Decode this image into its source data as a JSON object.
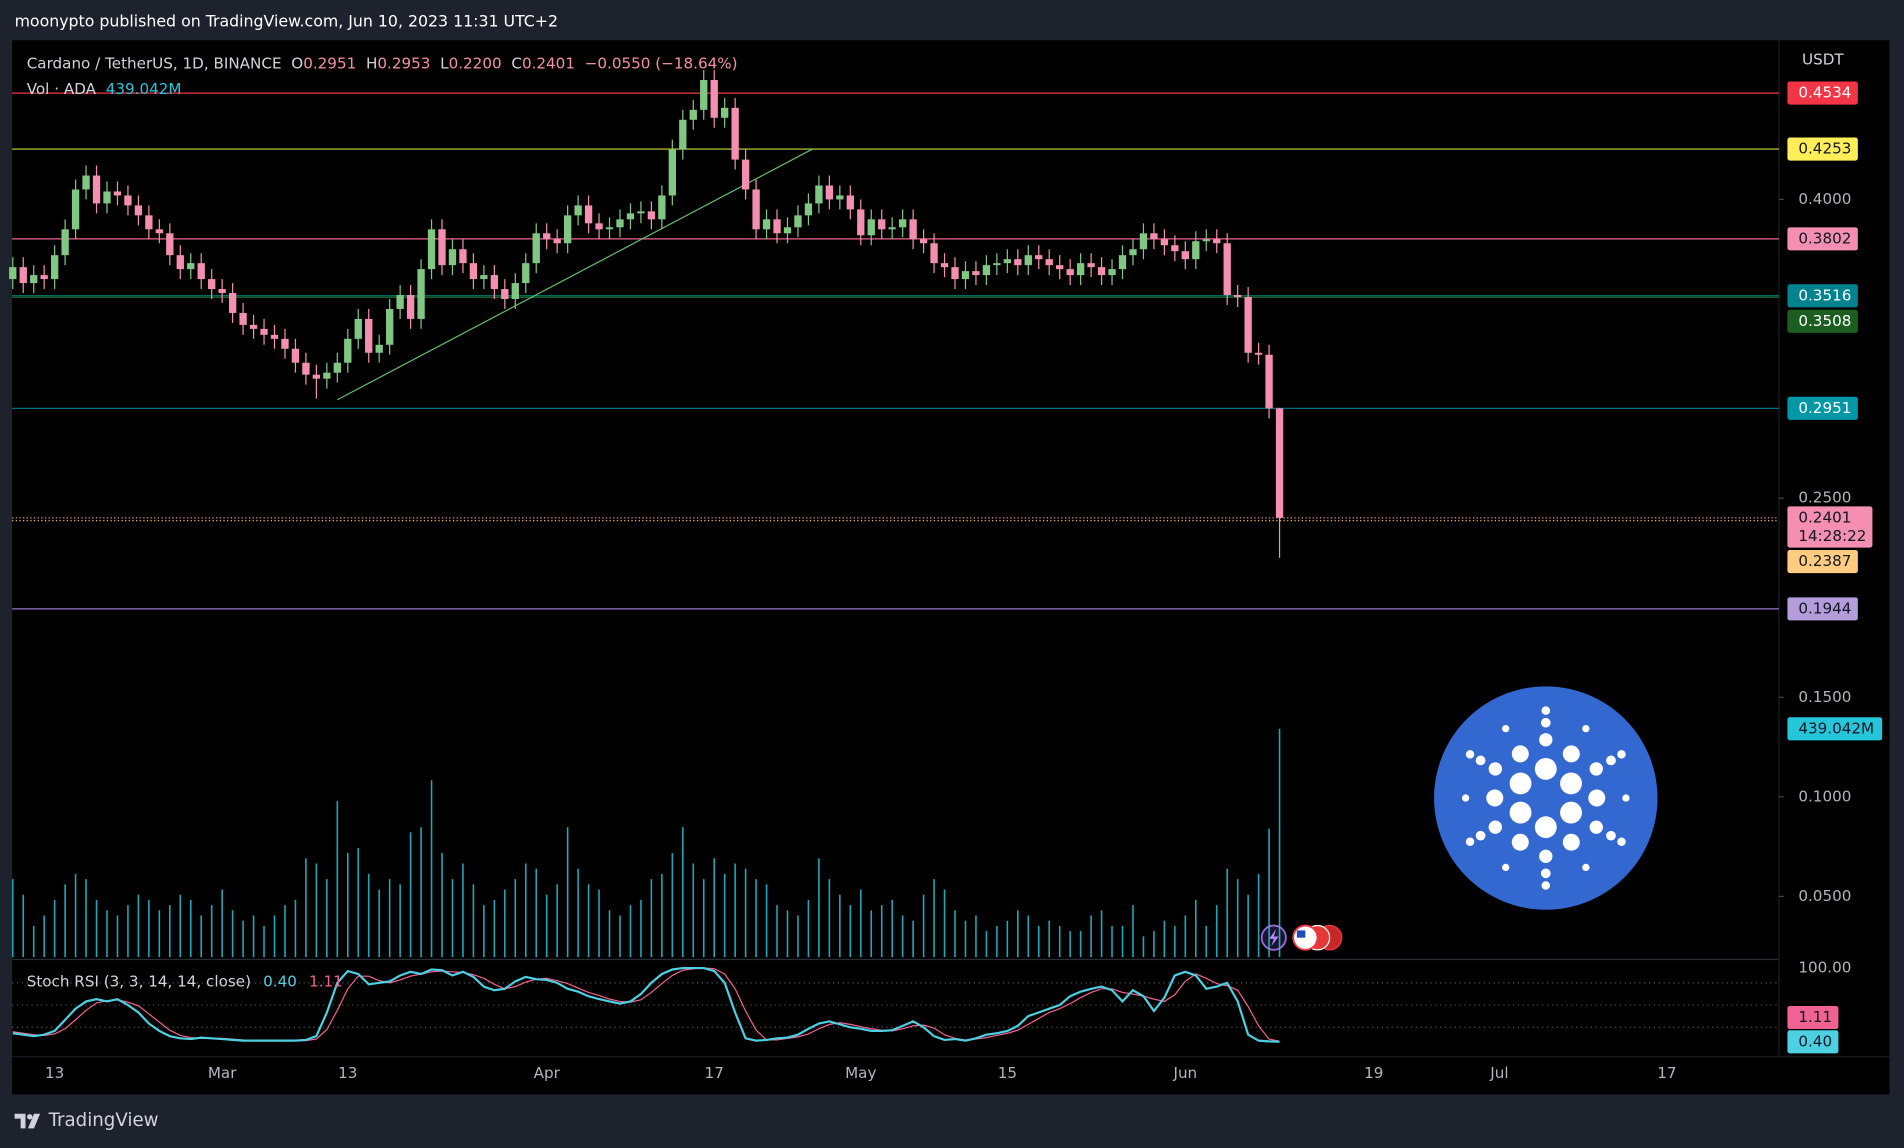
{
  "header": {
    "byline": "moonypto published on TradingView.com, Jun 10, 2023 11:31 UTC+2",
    "footer": "TradingView"
  },
  "chart_data": {
    "type": "candlestick",
    "legend": {
      "symbol": "Cardano / TetherUS, 1D, BINANCE",
      "fields": [
        {
          "key": "O",
          "value": "0.2951"
        },
        {
          "key": "H",
          "value": "0.2953"
        },
        {
          "key": "L",
          "value": "0.2200"
        },
        {
          "key": "C",
          "value": "0.2401"
        }
      ],
      "change": "−0.0550 (−18.64%)"
    },
    "y_axis_label": "USDT",
    "colors": {
      "up": "#81c784",
      "down": "#f48fb1"
    },
    "open": [
      0.36,
      0.366,
      0.358,
      0.362,
      0.36,
      0.372,
      0.385,
      0.405,
      0.412,
      0.398,
      0.404,
      0.402,
      0.397,
      0.392,
      0.385,
      0.383,
      0.372,
      0.365,
      0.368,
      0.36,
      0.355,
      0.353,
      0.343,
      0.337,
      0.335,
      0.332,
      0.33,
      0.325,
      0.318,
      0.312,
      0.31,
      0.313,
      0.318,
      0.33,
      0.34,
      0.323,
      0.327,
      0.345,
      0.352,
      0.34,
      0.365,
      0.385,
      0.367,
      0.375,
      0.368,
      0.36,
      0.362,
      0.355,
      0.35,
      0.358,
      0.368,
      0.383,
      0.38,
      0.378,
      0.392,
      0.397,
      0.388,
      0.385,
      0.386,
      0.39,
      0.393,
      0.394,
      0.39,
      0.402,
      0.425,
      0.44,
      0.445,
      0.46,
      0.441,
      0.446,
      0.42,
      0.405,
      0.385,
      0.39,
      0.383,
      0.386,
      0.392,
      0.398,
      0.407,
      0.4,
      0.402,
      0.395,
      0.382,
      0.39,
      0.385,
      0.386,
      0.39,
      0.38,
      0.378,
      0.368,
      0.366,
      0.36,
      0.364,
      0.362,
      0.367,
      0.368,
      0.37,
      0.367,
      0.372,
      0.37,
      0.367,
      0.365,
      0.362,
      0.368,
      0.366,
      0.362,
      0.365,
      0.372,
      0.375,
      0.383,
      0.38,
      0.377,
      0.374,
      0.37,
      0.379,
      0.38,
      0.378,
      0.352,
      0.351,
      0.323,
      0.322,
      0.2951
    ],
    "high": [
      0.371,
      0.371,
      0.367,
      0.367,
      0.377,
      0.39,
      0.41,
      0.417,
      0.417,
      0.409,
      0.409,
      0.407,
      0.402,
      0.397,
      0.39,
      0.388,
      0.377,
      0.373,
      0.373,
      0.365,
      0.36,
      0.358,
      0.348,
      0.342,
      0.34,
      0.337,
      0.335,
      0.33,
      0.323,
      0.317,
      0.318,
      0.323,
      0.335,
      0.345,
      0.345,
      0.332,
      0.35,
      0.357,
      0.357,
      0.37,
      0.39,
      0.39,
      0.38,
      0.38,
      0.373,
      0.367,
      0.367,
      0.36,
      0.363,
      0.373,
      0.388,
      0.388,
      0.385,
      0.397,
      0.402,
      0.402,
      0.393,
      0.391,
      0.395,
      0.398,
      0.399,
      0.399,
      0.407,
      0.43,
      0.445,
      0.45,
      0.465,
      0.465,
      0.451,
      0.451,
      0.425,
      0.41,
      0.395,
      0.395,
      0.391,
      0.397,
      0.403,
      0.412,
      0.412,
      0.407,
      0.407,
      0.4,
      0.395,
      0.395,
      0.391,
      0.395,
      0.395,
      0.385,
      0.383,
      0.373,
      0.371,
      0.369,
      0.369,
      0.372,
      0.373,
      0.375,
      0.375,
      0.377,
      0.377,
      0.375,
      0.372,
      0.37,
      0.373,
      0.373,
      0.371,
      0.37,
      0.377,
      0.38,
      0.388,
      0.388,
      0.385,
      0.382,
      0.379,
      0.384,
      0.385,
      0.385,
      0.383,
      0.357,
      0.356,
      0.328,
      0.327,
      0.2953
    ],
    "low": [
      0.355,
      0.353,
      0.353,
      0.355,
      0.355,
      0.367,
      0.38,
      0.4,
      0.393,
      0.393,
      0.397,
      0.392,
      0.387,
      0.38,
      0.378,
      0.367,
      0.36,
      0.36,
      0.355,
      0.35,
      0.348,
      0.338,
      0.332,
      0.33,
      0.327,
      0.325,
      0.32,
      0.313,
      0.307,
      0.3,
      0.305,
      0.308,
      0.313,
      0.325,
      0.318,
      0.318,
      0.322,
      0.34,
      0.335,
      0.335,
      0.36,
      0.362,
      0.362,
      0.363,
      0.355,
      0.355,
      0.35,
      0.345,
      0.345,
      0.353,
      0.363,
      0.375,
      0.373,
      0.373,
      0.387,
      0.383,
      0.38,
      0.38,
      0.381,
      0.385,
      0.388,
      0.385,
      0.385,
      0.397,
      0.42,
      0.435,
      0.44,
      0.436,
      0.436,
      0.415,
      0.4,
      0.38,
      0.38,
      0.378,
      0.378,
      0.381,
      0.387,
      0.393,
      0.395,
      0.395,
      0.39,
      0.377,
      0.377,
      0.38,
      0.38,
      0.381,
      0.375,
      0.373,
      0.363,
      0.361,
      0.355,
      0.355,
      0.357,
      0.357,
      0.362,
      0.363,
      0.362,
      0.362,
      0.365,
      0.362,
      0.36,
      0.357,
      0.357,
      0.361,
      0.357,
      0.357,
      0.36,
      0.367,
      0.37,
      0.375,
      0.372,
      0.369,
      0.365,
      0.365,
      0.374,
      0.373,
      0.347,
      0.346,
      0.318,
      0.317,
      0.29,
      0.22
    ],
    "close": [
      0.366,
      0.358,
      0.362,
      0.36,
      0.372,
      0.385,
      0.405,
      0.412,
      0.398,
      0.404,
      0.402,
      0.397,
      0.392,
      0.385,
      0.383,
      0.372,
      0.365,
      0.368,
      0.36,
      0.355,
      0.353,
      0.343,
      0.337,
      0.335,
      0.332,
      0.33,
      0.325,
      0.318,
      0.312,
      0.31,
      0.313,
      0.318,
      0.33,
      0.34,
      0.323,
      0.327,
      0.345,
      0.352,
      0.34,
      0.365,
      0.385,
      0.367,
      0.375,
      0.368,
      0.36,
      0.362,
      0.355,
      0.35,
      0.358,
      0.368,
      0.383,
      0.38,
      0.378,
      0.392,
      0.397,
      0.388,
      0.385,
      0.386,
      0.39,
      0.393,
      0.394,
      0.39,
      0.402,
      0.425,
      0.44,
      0.445,
      0.46,
      0.441,
      0.446,
      0.42,
      0.405,
      0.385,
      0.39,
      0.383,
      0.386,
      0.392,
      0.398,
      0.407,
      0.4,
      0.402,
      0.395,
      0.382,
      0.39,
      0.385,
      0.386,
      0.39,
      0.38,
      0.378,
      0.368,
      0.366,
      0.36,
      0.364,
      0.362,
      0.367,
      0.368,
      0.37,
      0.367,
      0.372,
      0.37,
      0.367,
      0.365,
      0.362,
      0.368,
      0.366,
      0.362,
      0.365,
      0.372,
      0.375,
      0.383,
      0.38,
      0.377,
      0.374,
      0.37,
      0.379,
      0.38,
      0.378,
      0.352,
      0.351,
      0.323,
      0.322,
      0.2951,
      0.2401
    ],
    "xlim": [
      -0.06,
      168.7
    ],
    "xticks": [
      {
        "value": 4,
        "label": "13"
      },
      {
        "value": 20,
        "label": "Mar"
      },
      {
        "value": 32,
        "label": "13"
      },
      {
        "value": 51,
        "label": "Apr"
      },
      {
        "value": 67,
        "label": "17"
      },
      {
        "value": 81,
        "label": "May"
      },
      {
        "value": 95,
        "label": "15"
      },
      {
        "value": 112,
        "label": "Jun"
      },
      {
        "value": 130,
        "label": "19"
      },
      {
        "value": 142,
        "label": "Jul"
      },
      {
        "value": 158,
        "label": "17"
      }
    ],
    "ylim": [
      0.0183,
      0.4799
    ],
    "yticks": [
      {
        "value": 0.4,
        "label": "0.4000"
      },
      {
        "value": 0.25,
        "label": "0.2500"
      },
      {
        "value": 0.15,
        "label": "0.1500"
      },
      {
        "value": 0.1,
        "label": "0.1000"
      },
      {
        "value": 0.05,
        "label": "0.0500"
      }
    ],
    "price_lines": [
      {
        "value": 0.4534,
        "color": "#f23645",
        "label_color": "#f23645",
        "text_color": "#ffffff",
        "style": "solid"
      },
      {
        "value": 0.4253,
        "color": "#cddc39",
        "label_color": "#ffee58",
        "text_color": "#131722",
        "style": "solid"
      },
      {
        "value": 0.3802,
        "color": "#f06292",
        "label_color": "#f48fb1",
        "text_color": "#131722",
        "style": "solid"
      },
      {
        "value": 0.3516,
        "color": "#00897b",
        "label_color": "#00838f",
        "text_color": "#ffffff",
        "style": "solid"
      },
      {
        "value": 0.3508,
        "color": "#1b5e20",
        "label_color": "#1b5e20",
        "text_color": "#ffffff",
        "style": "solid"
      },
      {
        "value": 0.2951,
        "color": "#00838f",
        "label_color": "#0097a7",
        "text_color": "#ffffff",
        "style": "solid"
      },
      {
        "value": 0.2401,
        "color": "#f48fb1",
        "label_color": "#f48fb1",
        "text_color": "#131722",
        "style": "dotted",
        "countdown": "14:28:22"
      },
      {
        "value": 0.2387,
        "color": "#ffb74d",
        "label_color": "#ffcc80",
        "text_color": "#131722",
        "style": "dotted"
      },
      {
        "value": 0.1944,
        "color": "#9575cd",
        "label_color": "#b39ddb",
        "text_color": "#131722",
        "style": "solid"
      }
    ],
    "trendline": {
      "x": [
        31,
        76.5
      ],
      "values": [
        0.2994,
        0.4256
      ],
      "color": "#66bb6a"
    },
    "volume": {
      "name": "Vol · ADA",
      "color": "#26c6da",
      "ylim": [
        0,
        1763
      ],
      "last_value_label": "439.042M",
      "values": [
        150,
        120,
        60,
        80,
        110,
        140,
        160,
        150,
        110,
        90,
        80,
        100,
        120,
        110,
        90,
        100,
        120,
        110,
        80,
        100,
        130,
        90,
        70,
        80,
        60,
        80,
        100,
        110,
        190,
        180,
        150,
        300,
        200,
        210,
        160,
        130,
        150,
        140,
        240,
        250,
        340,
        200,
        150,
        180,
        140,
        100,
        110,
        130,
        150,
        180,
        170,
        120,
        140,
        250,
        170,
        140,
        130,
        90,
        80,
        100,
        110,
        150,
        160,
        200,
        250,
        180,
        150,
        190,
        160,
        180,
        170,
        150,
        140,
        100,
        90,
        80,
        110,
        190,
        150,
        120,
        100,
        130,
        90,
        100,
        110,
        80,
        70,
        120,
        150,
        130,
        90,
        70,
        80,
        50,
        60,
        70,
        90,
        80,
        60,
        70,
        60,
        50,
        50,
        80,
        90,
        60,
        60,
        100,
        40,
        50,
        70,
        60,
        80,
        110,
        60,
        100,
        170,
        150,
        120,
        160,
        247,
        439.042
      ]
    },
    "stoch": {
      "name": "Stoch RSI (3, 3, 14, 14, close)",
      "ylim": [
        -19.7,
        111.5
      ],
      "yticks": [
        {
          "value": 100,
          "label": "100.00"
        }
      ],
      "bands": [
        80,
        50,
        20
      ],
      "series": [
        {
          "color": "#4dd0e1",
          "last_label": "0.40",
          "values": [
            12,
            10,
            8,
            10,
            15,
            30,
            45,
            55,
            58,
            55,
            58,
            50,
            40,
            25,
            15,
            8,
            5,
            4,
            6,
            5,
            4,
            3,
            2,
            2,
            2,
            2,
            2,
            2,
            3,
            8,
            40,
            80,
            96,
            92,
            78,
            80,
            82,
            90,
            95,
            92,
            98,
            97,
            90,
            95,
            88,
            75,
            70,
            72,
            82,
            88,
            85,
            84,
            80,
            72,
            68,
            62,
            58,
            55,
            52,
            55,
            65,
            80,
            92,
            98,
            100,
            100,
            100,
            96,
            80,
            40,
            5,
            2,
            3,
            5,
            6,
            10,
            18,
            25,
            28,
            24,
            20,
            18,
            15,
            15,
            16,
            22,
            28,
            20,
            8,
            3,
            4,
            2,
            5,
            10,
            12,
            15,
            22,
            35,
            40,
            45,
            50,
            62,
            68,
            72,
            75,
            70,
            55,
            70,
            62,
            42,
            60,
            90,
            95,
            90,
            72,
            75,
            80,
            55,
            10,
            2,
            1,
            0.4
          ]
        },
        {
          "color": "#f06292",
          "last_label": "1.11",
          "values": [
            14,
            12,
            10,
            9,
            11,
            18,
            30,
            43,
            53,
            56,
            57,
            54,
            49,
            38,
            27,
            16,
            9,
            6,
            5,
            5,
            5,
            4,
            3,
            2,
            2,
            2,
            2,
            2,
            2,
            4,
            17,
            43,
            72,
            89,
            89,
            83,
            80,
            84,
            89,
            92,
            95,
            96,
            95,
            94,
            91,
            86,
            78,
            72,
            75,
            81,
            85,
            86,
            83,
            79,
            73,
            67,
            63,
            58,
            55,
            54,
            57,
            67,
            79,
            90,
            97,
            99,
            100,
            99,
            92,
            72,
            42,
            16,
            3,
            3,
            5,
            7,
            11,
            18,
            24,
            26,
            24,
            21,
            18,
            16,
            15,
            18,
            22,
            23,
            19,
            10,
            5,
            3,
            4,
            6,
            9,
            12,
            16,
            24,
            32,
            40,
            45,
            52,
            60,
            67,
            72,
            72,
            67,
            65,
            62,
            58,
            55,
            64,
            82,
            92,
            86,
            79,
            76,
            70,
            48,
            22,
            4,
            1.11
          ]
        }
      ]
    }
  }
}
